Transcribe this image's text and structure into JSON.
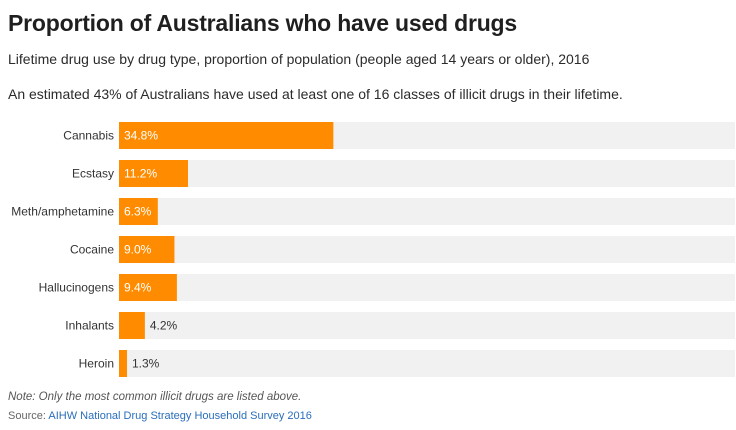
{
  "header": {
    "title": "Proportion of Australians who have used drugs",
    "subtitle": "Lifetime drug use by drug type, proportion of population (people aged 14 years or older), 2016",
    "description": "An estimated 43% of Australians have used at least one of 16 classes of illicit drugs in their lifetime."
  },
  "footer": {
    "note": "Note: Only the most common illicit drugs are listed above.",
    "source_prefix": "Source: ",
    "source_link": "AIHW National Drug Strategy Household Survey 2016"
  },
  "colors": {
    "bar": "#ff8c00",
    "track": "#f1f1f1",
    "value_inside": "#ffffff",
    "value_outside": "#333333"
  },
  "chart_data": {
    "type": "bar",
    "orientation": "horizontal",
    "categories": [
      "Cannabis",
      "Ecstasy",
      "Meth/amphetamine",
      "Cocaine",
      "Hallucinogens",
      "Inhalants",
      "Heroin"
    ],
    "values": [
      34.8,
      11.2,
      6.3,
      9.0,
      9.4,
      4.2,
      1.3
    ],
    "value_labels": [
      "34.8%",
      "11.2%",
      "6.3%",
      "9.0%",
      "9.4%",
      "4.2%",
      "1.3%"
    ],
    "xlim": [
      0,
      100
    ],
    "title": "",
    "xlabel": "",
    "ylabel": ""
  }
}
